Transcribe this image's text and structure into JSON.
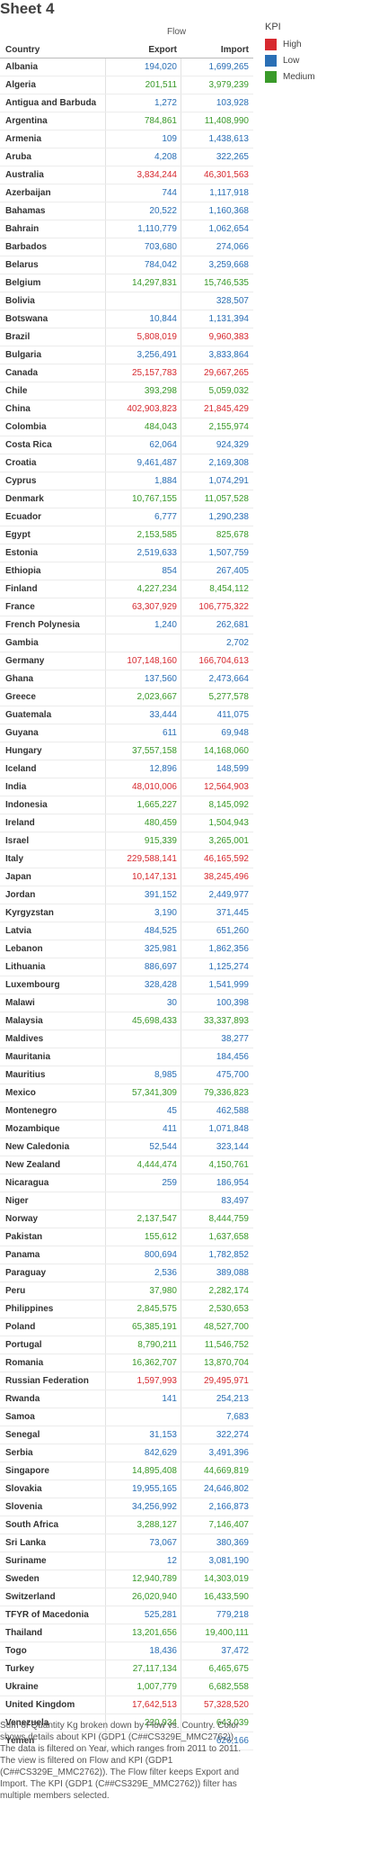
{
  "sheet": {
    "title": "Sheet 4"
  },
  "header": {
    "flow": "Flow",
    "country": "Country",
    "export": "Export",
    "import": "Import"
  },
  "legend": {
    "title": "KPI",
    "items": [
      {
        "label": "High",
        "color": "#d7292f"
      },
      {
        "label": "Low",
        "color": "#2a6fb5"
      },
      {
        "label": "Medium",
        "color": "#3a9a2a"
      }
    ]
  },
  "colors": {
    "High": "#d7292f",
    "Low": "#2a6fb5",
    "Medium": "#3a9a2a"
  },
  "chart_data": {
    "type": "table",
    "columns": [
      "Country",
      "Export",
      "Import",
      "KPI"
    ],
    "rows": [
      [
        "Albania",
        "194,020",
        "1,699,265",
        "Low"
      ],
      [
        "Algeria",
        "201,511",
        "3,979,239",
        "Medium"
      ],
      [
        "Antigua and Barbuda",
        "1,272",
        "103,928",
        "Low"
      ],
      [
        "Argentina",
        "784,861",
        "11,408,990",
        "Medium"
      ],
      [
        "Armenia",
        "109",
        "1,438,613",
        "Low"
      ],
      [
        "Aruba",
        "4,208",
        "322,265",
        "Low"
      ],
      [
        "Australia",
        "3,834,244",
        "46,301,563",
        "High"
      ],
      [
        "Azerbaijan",
        "744",
        "1,117,918",
        "Low"
      ],
      [
        "Bahamas",
        "20,522",
        "1,160,368",
        "Low"
      ],
      [
        "Bahrain",
        "1,110,779",
        "1,062,654",
        "Low"
      ],
      [
        "Barbados",
        "703,680",
        "274,066",
        "Low"
      ],
      [
        "Belarus",
        "784,042",
        "3,259,668",
        "Low"
      ],
      [
        "Belgium",
        "14,297,831",
        "15,746,535",
        "Medium"
      ],
      [
        "Bolivia",
        "",
        "328,507",
        "Low"
      ],
      [
        "Botswana",
        "10,844",
        "1,131,394",
        "Low"
      ],
      [
        "Brazil",
        "5,808,019",
        "9,960,383",
        "High"
      ],
      [
        "Bulgaria",
        "3,256,491",
        "3,833,864",
        "Low"
      ],
      [
        "Canada",
        "25,157,783",
        "29,667,265",
        "High"
      ],
      [
        "Chile",
        "393,298",
        "5,059,032",
        "Medium"
      ],
      [
        "China",
        "402,903,823",
        "21,845,429",
        "High"
      ],
      [
        "Colombia",
        "484,043",
        "2,155,974",
        "Medium"
      ],
      [
        "Costa Rica",
        "62,064",
        "924,329",
        "Low"
      ],
      [
        "Croatia",
        "9,461,487",
        "2,169,308",
        "Low"
      ],
      [
        "Cyprus",
        "1,884",
        "1,074,291",
        "Low"
      ],
      [
        "Denmark",
        "10,767,155",
        "11,057,528",
        "Medium"
      ],
      [
        "Ecuador",
        "6,777",
        "1,290,238",
        "Low"
      ],
      [
        "Egypt",
        "2,153,585",
        "825,678",
        "Medium"
      ],
      [
        "Estonia",
        "2,519,633",
        "1,507,759",
        "Low"
      ],
      [
        "Ethiopia",
        "854",
        "267,405",
        "Low"
      ],
      [
        "Finland",
        "4,227,234",
        "8,454,112",
        "Medium"
      ],
      [
        "France",
        "63,307,929",
        "106,775,322",
        "High"
      ],
      [
        "French Polynesia",
        "1,240",
        "262,681",
        "Low"
      ],
      [
        "Gambia",
        "",
        "2,702",
        "Low"
      ],
      [
        "Germany",
        "107,148,160",
        "166,704,613",
        "High"
      ],
      [
        "Ghana",
        "137,560",
        "2,473,664",
        "Low"
      ],
      [
        "Greece",
        "2,023,667",
        "5,277,578",
        "Medium"
      ],
      [
        "Guatemala",
        "33,444",
        "411,075",
        "Low"
      ],
      [
        "Guyana",
        "611",
        "69,948",
        "Low"
      ],
      [
        "Hungary",
        "37,557,158",
        "14,168,060",
        "Medium"
      ],
      [
        "Iceland",
        "12,896",
        "148,599",
        "Low"
      ],
      [
        "India",
        "48,010,006",
        "12,564,903",
        "High"
      ],
      [
        "Indonesia",
        "1,665,227",
        "8,145,092",
        "Medium"
      ],
      [
        "Ireland",
        "480,459",
        "1,504,943",
        "Medium"
      ],
      [
        "Israel",
        "915,339",
        "3,265,001",
        "Medium"
      ],
      [
        "Italy",
        "229,588,141",
        "46,165,592",
        "High"
      ],
      [
        "Japan",
        "10,147,131",
        "38,245,496",
        "High"
      ],
      [
        "Jordan",
        "391,152",
        "2,449,977",
        "Low"
      ],
      [
        "Kyrgyzstan",
        "3,190",
        "371,445",
        "Low"
      ],
      [
        "Latvia",
        "484,525",
        "651,260",
        "Low"
      ],
      [
        "Lebanon",
        "325,981",
        "1,862,356",
        "Low"
      ],
      [
        "Lithuania",
        "886,697",
        "1,125,274",
        "Low"
      ],
      [
        "Luxembourg",
        "328,428",
        "1,541,999",
        "Low"
      ],
      [
        "Malawi",
        "30",
        "100,398",
        "Low"
      ],
      [
        "Malaysia",
        "45,698,433",
        "33,337,893",
        "Medium"
      ],
      [
        "Maldives",
        "",
        "38,277",
        "Low"
      ],
      [
        "Mauritania",
        "",
        "184,456",
        "Low"
      ],
      [
        "Mauritius",
        "8,985",
        "475,700",
        "Low"
      ],
      [
        "Mexico",
        "57,341,309",
        "79,336,823",
        "Medium"
      ],
      [
        "Montenegro",
        "45",
        "462,588",
        "Low"
      ],
      [
        "Mozambique",
        "411",
        "1,071,848",
        "Low"
      ],
      [
        "New Caledonia",
        "52,544",
        "323,144",
        "Low"
      ],
      [
        "New Zealand",
        "4,444,474",
        "4,150,761",
        "Medium"
      ],
      [
        "Nicaragua",
        "259",
        "186,954",
        "Low"
      ],
      [
        "Niger",
        "",
        "83,497",
        "Low"
      ],
      [
        "Norway",
        "2,137,547",
        "8,444,759",
        "Medium"
      ],
      [
        "Pakistan",
        "155,612",
        "1,637,658",
        "Medium"
      ],
      [
        "Panama",
        "800,694",
        "1,782,852",
        "Low"
      ],
      [
        "Paraguay",
        "2,536",
        "389,088",
        "Low"
      ],
      [
        "Peru",
        "37,980",
        "2,282,174",
        "Medium"
      ],
      [
        "Philippines",
        "2,845,575",
        "2,530,653",
        "Medium"
      ],
      [
        "Poland",
        "65,385,191",
        "48,527,700",
        "Medium"
      ],
      [
        "Portugal",
        "8,790,211",
        "11,546,752",
        "Medium"
      ],
      [
        "Romania",
        "16,362,707",
        "13,870,704",
        "Medium"
      ],
      [
        "Russian Federation",
        "1,597,993",
        "29,495,971",
        "High"
      ],
      [
        "Rwanda",
        "141",
        "254,213",
        "Low"
      ],
      [
        "Samoa",
        "",
        "7,683",
        "Low"
      ],
      [
        "Senegal",
        "31,153",
        "322,274",
        "Low"
      ],
      [
        "Serbia",
        "842,629",
        "3,491,396",
        "Low"
      ],
      [
        "Singapore",
        "14,895,408",
        "44,669,819",
        "Medium"
      ],
      [
        "Slovakia",
        "19,955,165",
        "24,646,802",
        "Low"
      ],
      [
        "Slovenia",
        "34,256,992",
        "2,166,873",
        "Low"
      ],
      [
        "South Africa",
        "3,288,127",
        "7,146,407",
        "Medium"
      ],
      [
        "Sri Lanka",
        "73,067",
        "380,369",
        "Low"
      ],
      [
        "Suriname",
        "12",
        "3,081,190",
        "Low"
      ],
      [
        "Sweden",
        "12,940,789",
        "14,303,019",
        "Medium"
      ],
      [
        "Switzerland",
        "26,020,940",
        "16,433,590",
        "Medium"
      ],
      [
        "TFYR of Macedonia",
        "525,281",
        "779,218",
        "Low"
      ],
      [
        "Thailand",
        "13,201,656",
        "19,400,111",
        "Medium"
      ],
      [
        "Togo",
        "18,436",
        "37,472",
        "Low"
      ],
      [
        "Turkey",
        "27,117,134",
        "6,465,675",
        "Medium"
      ],
      [
        "Ukraine",
        "1,007,779",
        "6,682,558",
        "Medium"
      ],
      [
        "United Kingdom",
        "17,642,513",
        "57,328,520",
        "High"
      ],
      [
        "Venezuela",
        "220,934",
        "643,039",
        "Medium"
      ],
      [
        "Yemen",
        "",
        "626,166",
        "Low"
      ]
    ]
  },
  "caption": "Sum of Quantity Kg broken down by Flow vs. Country.  Color shows details about KPI (GDP1 (C##CS329E_MMC2762)). The data is filtered on Year, which ranges from 2011 to 2011. The view is filtered on Flow and KPI (GDP1 (C##CS329E_MMC2762)). The Flow filter keeps Export and Import. The KPI (GDP1 (C##CS329E_MMC2762)) filter has multiple members selected."
}
